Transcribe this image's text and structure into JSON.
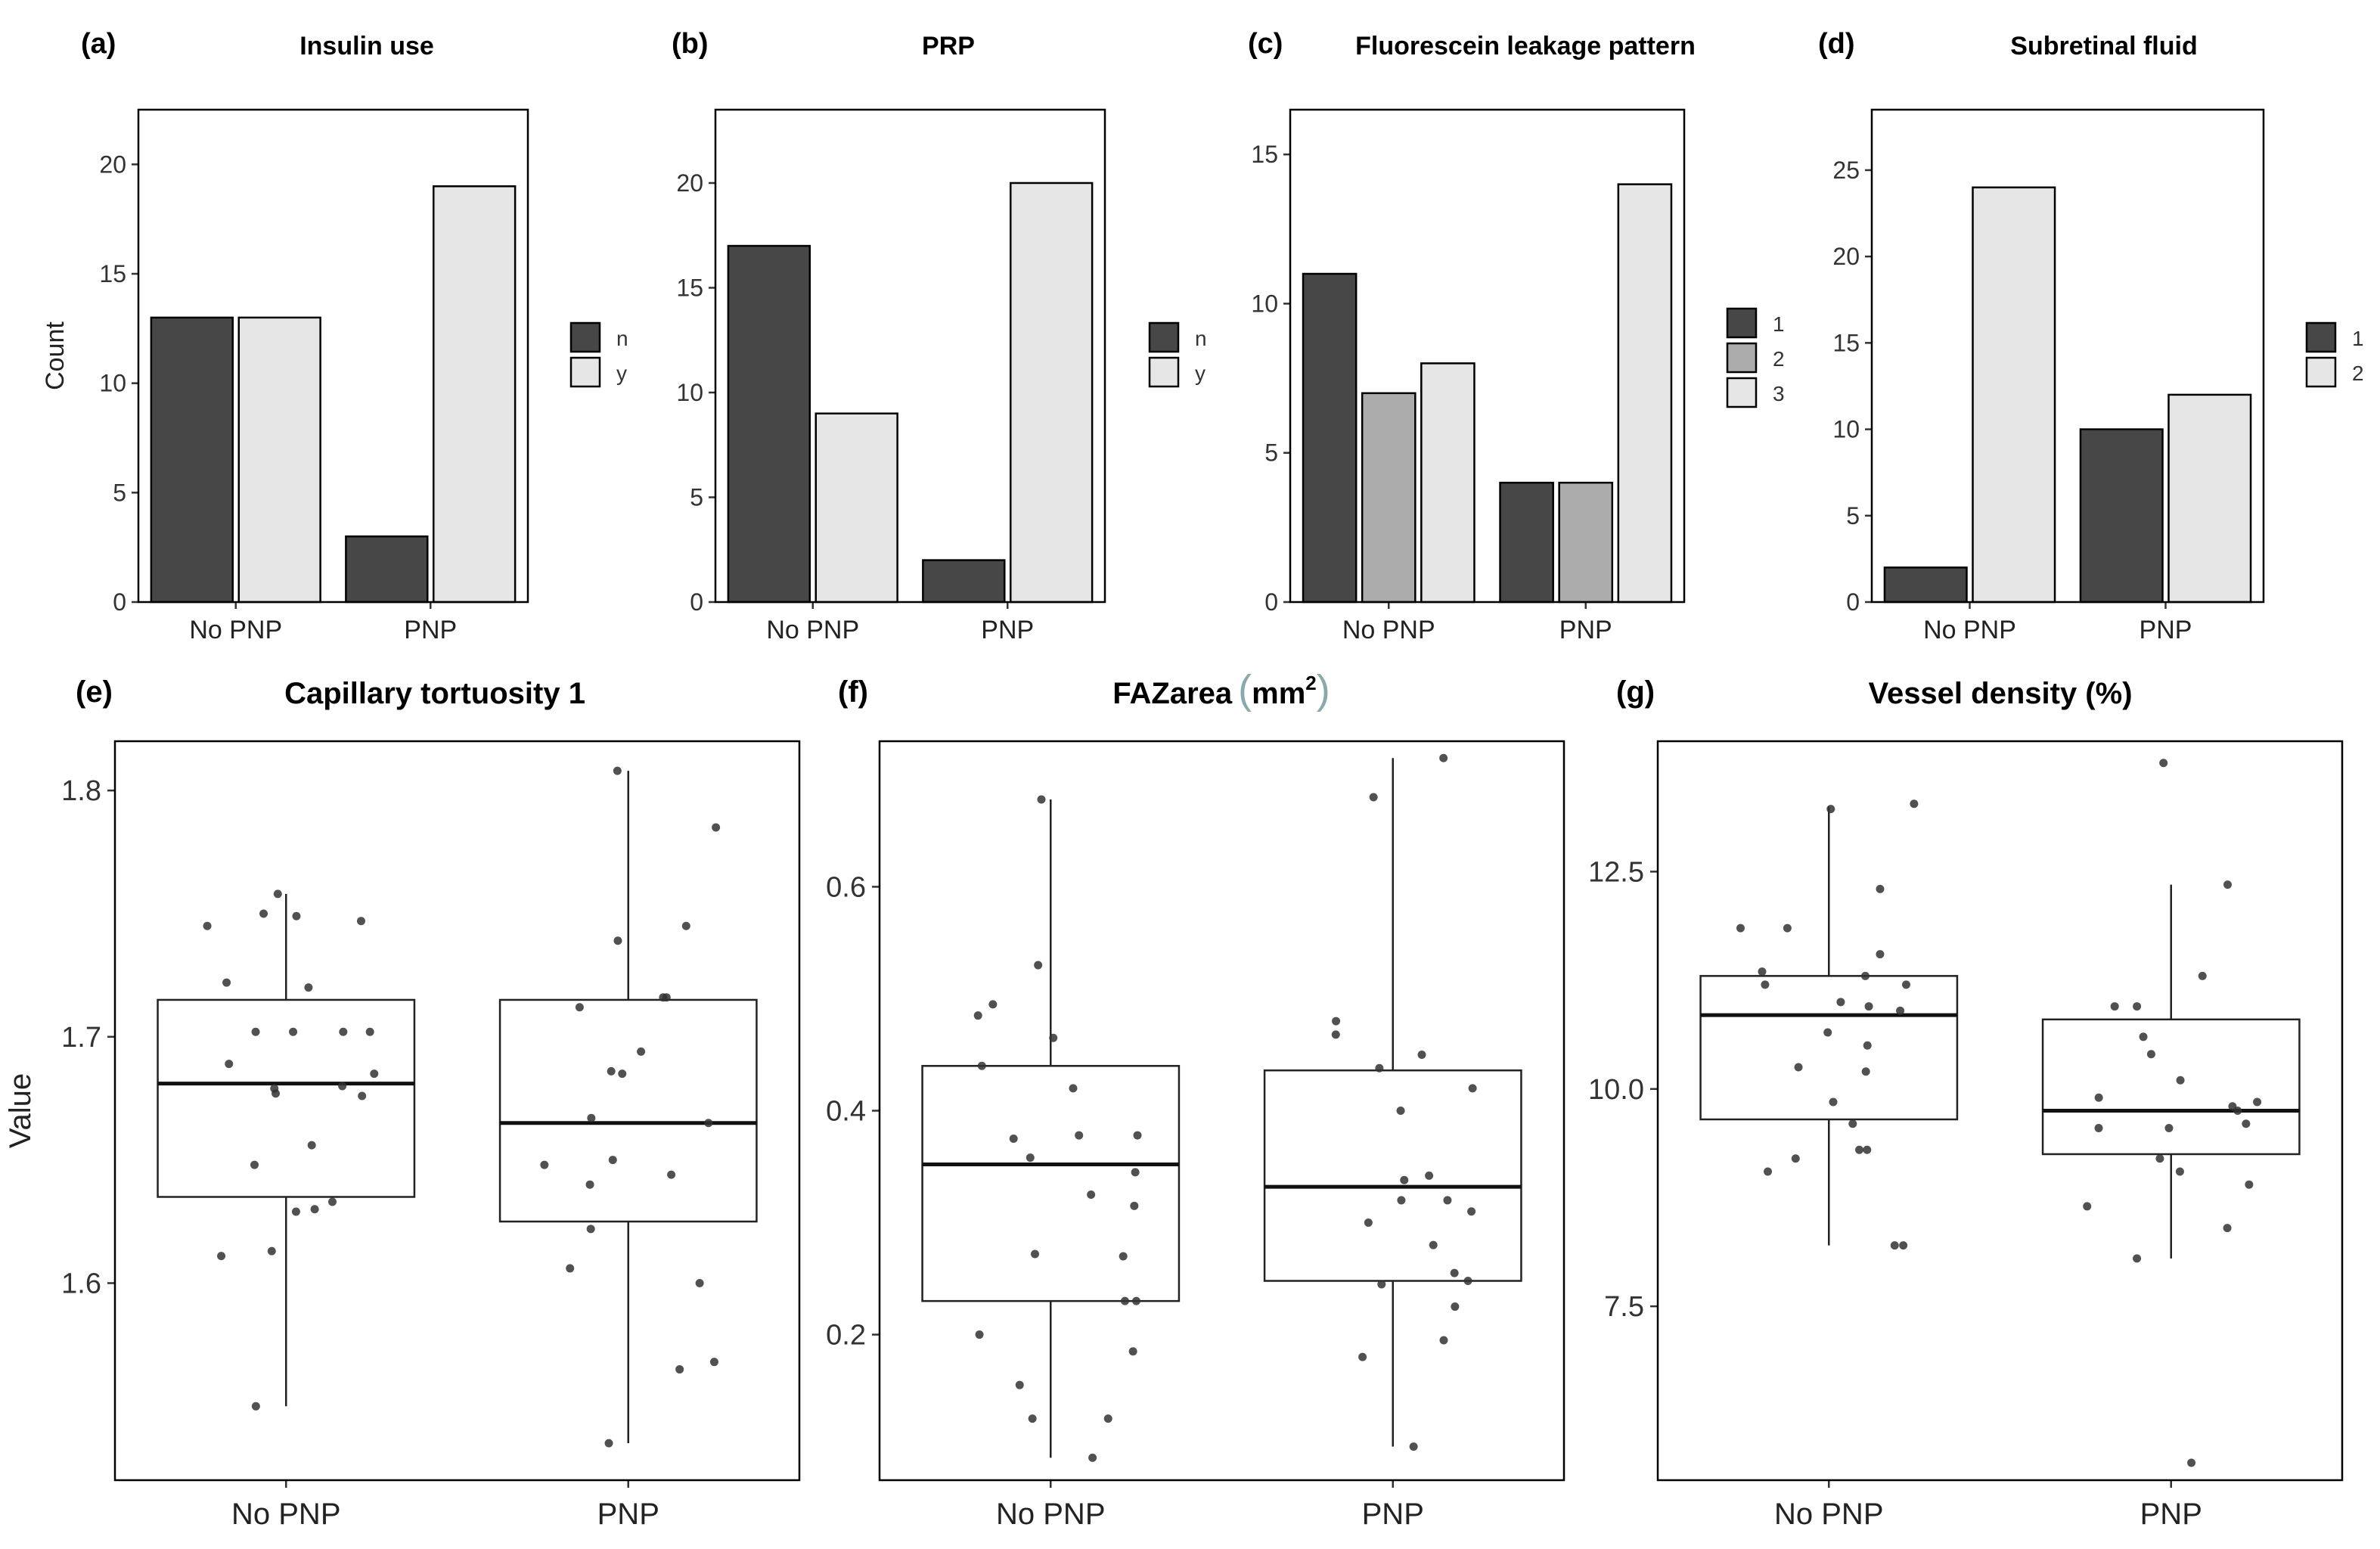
{
  "figure": {
    "labels": [
      "(a)",
      "(b)",
      "(c)",
      "(d)",
      "(e)",
      "(f)",
      "(g)"
    ]
  },
  "colors": {
    "dark": "#474747",
    "mid": "#acacac",
    "light": "#e6e6e6",
    "point": "#333333"
  },
  "chart_data": [
    {
      "panel": "(a)",
      "type": "bar",
      "title": "Insulin use",
      "xlabel": "",
      "ylabel": "Count",
      "categories": [
        "No PNP",
        "PNP"
      ],
      "series": [
        {
          "name": "n",
          "values": [
            13,
            3
          ]
        },
        {
          "name": "y",
          "values": [
            13,
            19
          ]
        }
      ],
      "legend": [
        "n",
        "y"
      ],
      "ylim": [
        0,
        22.5
      ],
      "yticks": [
        0,
        5,
        10,
        15,
        20
      ]
    },
    {
      "panel": "(b)",
      "type": "bar",
      "title": "PRP",
      "xlabel": "",
      "ylabel": "",
      "categories": [
        "No PNP",
        "PNP"
      ],
      "series": [
        {
          "name": "n",
          "values": [
            17,
            2
          ]
        },
        {
          "name": "y",
          "values": [
            9,
            20
          ]
        }
      ],
      "legend": [
        "n",
        "y"
      ],
      "ylim": [
        0,
        23.5
      ],
      "yticks": [
        0,
        5,
        10,
        15,
        20
      ]
    },
    {
      "panel": "(c)",
      "type": "bar",
      "title": "Fluorescein leakage pattern",
      "xlabel": "",
      "ylabel": "",
      "categories": [
        "No PNP",
        "PNP"
      ],
      "series": [
        {
          "name": "1",
          "values": [
            11,
            4
          ]
        },
        {
          "name": "2",
          "values": [
            7,
            4
          ]
        },
        {
          "name": "3",
          "values": [
            8,
            14
          ]
        }
      ],
      "legend": [
        "1",
        "2",
        "3"
      ],
      "ylim": [
        0,
        16.5
      ],
      "yticks": [
        0,
        5,
        10,
        15
      ]
    },
    {
      "panel": "(d)",
      "type": "bar",
      "title": "Subretinal fluid",
      "xlabel": "",
      "ylabel": "",
      "categories": [
        "No PNP",
        "PNP"
      ],
      "series": [
        {
          "name": "1",
          "values": [
            2,
            10
          ]
        },
        {
          "name": "2",
          "values": [
            24,
            12
          ]
        }
      ],
      "legend": [
        "1",
        "2"
      ],
      "ylim": [
        0,
        28.5
      ],
      "yticks": [
        0,
        5,
        10,
        15,
        20,
        25
      ]
    },
    {
      "panel": "(e)",
      "type": "box",
      "title": "Capillary tortuosity 1",
      "xlabel": "",
      "ylabel": "Value",
      "categories": [
        "No PNP",
        "PNP"
      ],
      "ylim": [
        1.52,
        1.82
      ],
      "yticks": [
        1.6,
        1.7,
        1.8
      ],
      "ytick_labels": [
        "1.6",
        "1.7",
        "1.8"
      ],
      "boxes": [
        {
          "min": 1.55,
          "q1": 1.635,
          "median": 1.681,
          "q3": 1.715,
          "max": 1.758
        },
        {
          "min": 1.535,
          "q1": 1.625,
          "median": 1.665,
          "q3": 1.715,
          "max": 1.808
        }
      ],
      "points": [
        [
          1.747,
          1.745,
          1.749,
          1.75,
          1.758,
          1.72,
          1.722,
          1.702,
          1.702,
          1.702,
          1.702,
          1.689,
          1.685,
          1.68,
          1.677,
          1.676,
          1.679,
          1.656,
          1.648,
          1.633,
          1.629,
          1.63,
          1.613,
          1.611,
          1.55
        ],
        [
          1.808,
          1.785,
          1.745,
          1.739,
          1.716,
          1.716,
          1.712,
          1.694,
          1.685,
          1.686,
          1.667,
          1.665,
          1.65,
          1.648,
          1.644,
          1.64,
          1.622,
          1.606,
          1.6,
          1.568,
          1.565,
          1.535
        ]
      ]
    },
    {
      "panel": "(f)",
      "type": "box",
      "title": "FAZarea (mm²)",
      "title_main": "FAZarea",
      "title_unit": "mm",
      "title_sup": "2",
      "xlabel": "",
      "ylabel": "",
      "categories": [
        "No PNP",
        "PNP"
      ],
      "ylim": [
        0.07,
        0.73
      ],
      "yticks": [
        0.2,
        0.4,
        0.6
      ],
      "ytick_labels": [
        "0.2",
        "0.4",
        "0.6"
      ],
      "boxes": [
        {
          "min": 0.09,
          "q1": 0.23,
          "median": 0.352,
          "q3": 0.44,
          "max": 0.678
        },
        {
          "min": 0.1,
          "q1": 0.248,
          "median": 0.332,
          "q3": 0.436,
          "max": 0.715
        }
      ],
      "points": [
        [
          0.678,
          0.53,
          0.495,
          0.485,
          0.465,
          0.44,
          0.42,
          0.378,
          0.378,
          0.375,
          0.345,
          0.358,
          0.325,
          0.315,
          0.272,
          0.27,
          0.23,
          0.23,
          0.2,
          0.185,
          0.155,
          0.125,
          0.125,
          0.09
        ],
        [
          0.715,
          0.68,
          0.48,
          0.468,
          0.45,
          0.438,
          0.42,
          0.4,
          0.338,
          0.342,
          0.32,
          0.32,
          0.31,
          0.3,
          0.28,
          0.255,
          0.245,
          0.248,
          0.225,
          0.195,
          0.18,
          0.1
        ]
      ]
    },
    {
      "panel": "(g)",
      "type": "box",
      "title": "Vessel density (%)",
      "xlabel": "",
      "ylabel": "",
      "categories": [
        "No PNP",
        "PNP"
      ],
      "ylim": [
        5.5,
        14.0
      ],
      "yticks": [
        7.5,
        10.0,
        12.5
      ],
      "ytick_labels": [
        "7.5",
        "10.0",
        "12.5"
      ],
      "boxes": [
        {
          "min": 8.2,
          "q1": 9.65,
          "median": 10.85,
          "q3": 11.3,
          "max": 13.25
        },
        {
          "min": 8.05,
          "q1": 9.25,
          "median": 9.75,
          "q3": 10.8,
          "max": 12.35
        }
      ],
      "points": [
        [
          13.28,
          13.22,
          12.3,
          11.85,
          11.85,
          11.55,
          11.35,
          11.3,
          11.2,
          11.2,
          11.0,
          10.95,
          10.9,
          10.65,
          10.5,
          10.25,
          10.2,
          9.85,
          9.6,
          9.3,
          9.3,
          9.2,
          9.05,
          8.2,
          8.2
        ],
        [
          13.75,
          12.35,
          11.3,
          10.95,
          10.95,
          10.6,
          10.4,
          10.1,
          9.9,
          9.85,
          9.8,
          9.75,
          9.6,
          9.55,
          9.55,
          9.2,
          9.05,
          8.9,
          8.65,
          8.4,
          8.05,
          5.7
        ]
      ]
    }
  ]
}
